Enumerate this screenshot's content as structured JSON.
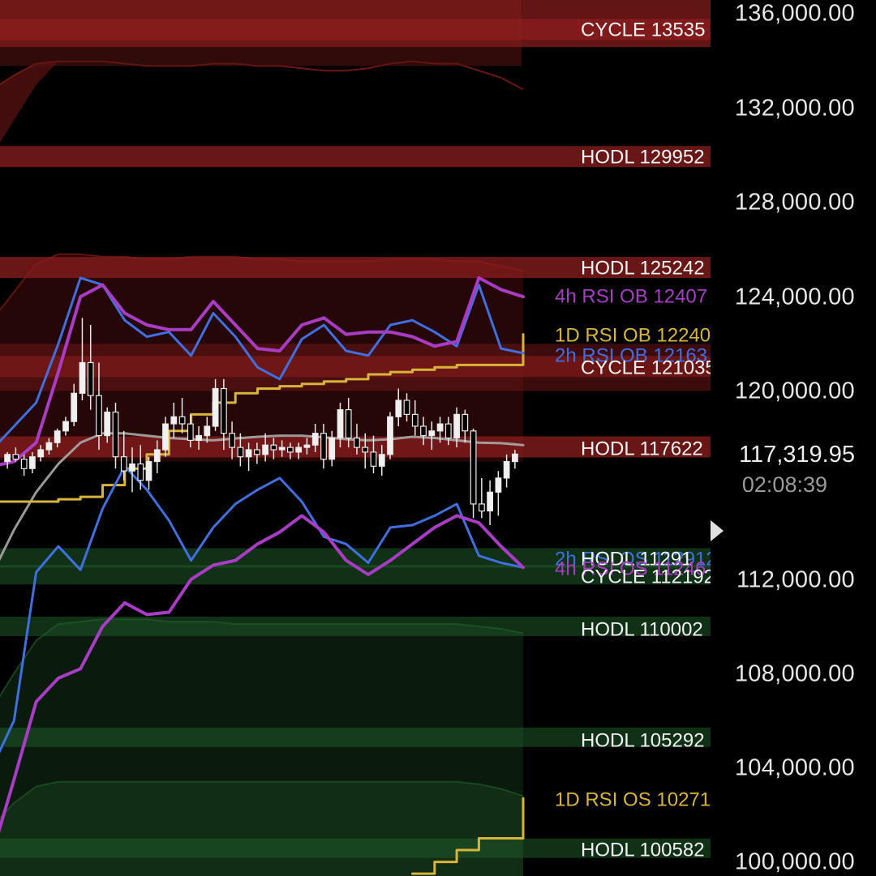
{
  "price_axis": {
    "ticks": [
      "136,000.00",
      "132,000.00",
      "128,000.00",
      "124,000.00",
      "120,000.00",
      "112,000.00",
      "108,000.00",
      "104,000.00",
      "100,000.00"
    ],
    "current_price": "117,319.95",
    "countdown": "02:08:39"
  },
  "colors": {
    "background": "#000000",
    "resistance_zone": "#8b1e1e",
    "support_zone": "#1f5a2a",
    "rsi_2h": "#3f6fe0",
    "rsi_4h": "#a83cc4",
    "rsi_1d": "#d9b43a",
    "ma": "#a8a8a8",
    "candle": "#e8e8e8",
    "level_text": "#f2f2f2"
  },
  "chart_data": {
    "type": "candlestick",
    "ylim": [
      99400,
      136600
    ],
    "y_ticks": [
      136000,
      132000,
      128000,
      124000,
      120000,
      112000,
      108000,
      104000,
      100000
    ],
    "current_price": 117319.95,
    "grid": false,
    "levels": [
      {
        "label": "CYCLE 13535",
        "price": 135350,
        "color": "#f2f2f2",
        "zone": "red"
      },
      {
        "label": "HODL 129952",
        "price": 129952,
        "color": "#f2f2f2",
        "zone": "red"
      },
      {
        "label": "HODL 125242",
        "price": 125242,
        "color": "#f2f2f2",
        "zone": "red"
      },
      {
        "label": "4h RSI OB 12407",
        "price": 124070,
        "color": "#a83cc4",
        "zone": null
      },
      {
        "label": "1D RSI OB 12240",
        "price": 122400,
        "color": "#d9b43a",
        "zone": null
      },
      {
        "label": "2h RSI OB 12163",
        "price": 121630,
        "color": "#3f6fe0",
        "zone": null
      },
      {
        "label": "CYCLE 121035",
        "price": 121035,
        "color": "#f2f2f2",
        "zone": "red"
      },
      {
        "label": "HODL 117622",
        "price": 117622,
        "color": "#f2f2f2",
        "zone": "red"
      },
      {
        "label": "2h RSI OS 112912",
        "price": 112912,
        "color": "#3f6fe0",
        "zone": null
      },
      {
        "label": "HODL 11291",
        "price": 112910,
        "color": "#f2f2f2",
        "zone": "green"
      },
      {
        "label": "4h RSI OS 11246",
        "price": 112460,
        "color": "#a83cc4",
        "zone": null
      },
      {
        "label": "CYCLE 112192",
        "price": 112192,
        "color": "#f2f2f2",
        "zone": "green"
      },
      {
        "label": "HODL 110002",
        "price": 110002,
        "color": "#f2f2f2",
        "zone": "green"
      },
      {
        "label": "HODL 105292",
        "price": 105292,
        "color": "#f2f2f2",
        "zone": "green"
      },
      {
        "label": "1D RSI OS 10271",
        "price": 102710,
        "color": "#d9b43a",
        "zone": null
      },
      {
        "label": "HODL 100582",
        "price": 100582,
        "color": "#f2f2f2",
        "zone": "green"
      }
    ],
    "series": [
      {
        "key": "ma",
        "color": "#a8a8a8",
        "width": 3,
        "opacity": 0.9,
        "values": [
          112200,
          114100,
          115700,
          116900,
          117800,
          118200,
          118200,
          118100,
          118000,
          117950,
          117900,
          117980,
          118050,
          118100,
          118100,
          118030,
          117950,
          117900,
          117950,
          118050,
          118000,
          117900,
          117800,
          117780,
          117700
        ]
      },
      {
        "key": "rsi_1d",
        "color": "#d9b43a",
        "width": 3,
        "opacity": 1,
        "step": true,
        "values": [
          115300,
          115300,
          115300,
          115400,
          115500,
          116000,
          116700,
          117300,
          118300,
          119000,
          119500,
          119900,
          120100,
          120200,
          120300,
          120400,
          120500,
          120700,
          120800,
          120900,
          121000,
          121100,
          121100,
          121100,
          122400
        ]
      },
      {
        "key": "rsi_2h",
        "color": "#3f6fe0",
        "width": 3,
        "opacity": 1,
        "values": [
          117500,
          118500,
          119500,
          122000,
          124800,
          124500,
          123000,
          122300,
          122500,
          121500,
          123300,
          122300,
          121000,
          120500,
          122200,
          122800,
          121700,
          121500,
          122800,
          123000,
          122500,
          121900,
          124500,
          121800,
          121600
        ]
      },
      {
        "key": "rsi_4h",
        "color": "#a83cc4",
        "width": 4,
        "opacity": 1,
        "values": [
          116800,
          117000,
          117800,
          120800,
          124000,
          124500,
          123300,
          122800,
          122600,
          122600,
          123800,
          122800,
          121800,
          121700,
          122800,
          123100,
          122400,
          122500,
          122500,
          122300,
          121900,
          122100,
          124800,
          124300,
          124000
        ]
      },
      {
        "key": "rsi_2h_os",
        "color": "#3f6fe0",
        "width": 3,
        "opacity": 1,
        "values": [
          104000,
          106000,
          112300,
          113400,
          112400,
          115000,
          116800,
          115800,
          114500,
          112800,
          114200,
          115200,
          115800,
          116300,
          115300,
          113800,
          113500,
          112700,
          114200,
          114300,
          114700,
          115200,
          113000,
          112700,
          112500
        ]
      },
      {
        "key": "rsi_4h_os",
        "color": "#a83cc4",
        "width": 4,
        "opacity": 1,
        "values": [
          100300,
          103500,
          106800,
          107800,
          108200,
          110000,
          111000,
          110500,
          110600,
          112000,
          112600,
          112800,
          113500,
          114000,
          114700,
          114000,
          112800,
          112200,
          112800,
          113500,
          114200,
          114700,
          114400,
          113400,
          112500
        ]
      },
      {
        "key": "rsi_1d_os",
        "color": "#d9b43a",
        "width": 3,
        "opacity": 1,
        "step": true,
        "start": 19,
        "values": [
          null,
          null,
          null,
          null,
          null,
          null,
          null,
          null,
          null,
          null,
          null,
          null,
          null,
          null,
          null,
          null,
          null,
          null,
          null,
          99500,
          100000,
          100500,
          101000,
          101000,
          102700
        ]
      }
    ],
    "bands": [
      {
        "upper": [
          132800,
          133400,
          133900,
          134000,
          134000,
          134000,
          133900,
          133800,
          133800,
          133800,
          133900,
          133900,
          133800,
          133800,
          133700,
          133600,
          133600,
          133700,
          133900,
          134000,
          133900,
          133900,
          133600,
          133300,
          132800
        ],
        "lower": [
          130000,
          131500,
          133000,
          134000,
          134000,
          134000,
          133900,
          133800,
          133800,
          133800,
          133900,
          133900,
          133800,
          133800,
          133700,
          133600,
          133600,
          133700,
          133900,
          134000,
          133900,
          133900,
          133600,
          133300,
          132800
        ],
        "fill": "#7a1818",
        "opacity": 0.55
      },
      {
        "upper": [
          123000,
          124200,
          125400,
          125800,
          125800,
          125700,
          125700,
          125600,
          125600,
          125700,
          125700,
          125700,
          125600,
          125600,
          125500,
          125500,
          125500,
          125500,
          125600,
          125600,
          125600,
          125500,
          125500,
          125300,
          125100
        ],
        "fill": "#6a1515",
        "opacity": 0.35
      },
      {
        "upper": [
          106500,
          108000,
          109400,
          110100,
          110200,
          110300,
          110300,
          110300,
          110200,
          110200,
          110200,
          110100,
          110100,
          110100,
          110100,
          110100,
          110100,
          110100,
          110100,
          110100,
          110100,
          110100,
          110000,
          109900,
          109700
        ],
        "fill": "#1c4a22",
        "opacity": 0.35
      },
      {
        "upper": [
          101500,
          102500,
          103200,
          103400,
          103400,
          103400,
          103400,
          103400,
          103400,
          103400,
          103400,
          103400,
          103400,
          103400,
          103400,
          103400,
          103400,
          103400,
          103400,
          103400,
          103400,
          103400,
          103300,
          103100,
          102800
        ],
        "fill": "#1c4a22",
        "opacity": 0.4
      }
    ],
    "candles": [
      [
        117000,
        117400,
        116700,
        117300
      ],
      [
        117300,
        117600,
        117000,
        117100
      ],
      [
        117100,
        117300,
        116400,
        116700
      ],
      [
        116700,
        117400,
        116500,
        117200
      ],
      [
        117200,
        117700,
        117000,
        117500
      ],
      [
        117500,
        118000,
        117300,
        117800
      ],
      [
        117800,
        118400,
        117600,
        118300
      ],
      [
        118300,
        118900,
        118100,
        118700
      ],
      [
        118700,
        120300,
        118500,
        119900
      ],
      [
        119900,
        123100,
        119600,
        121200
      ],
      [
        121200,
        122800,
        119200,
        119800
      ],
      [
        119800,
        121200,
        117500,
        118100
      ],
      [
        118100,
        119300,
        117800,
        119100
      ],
      [
        119100,
        119500,
        116700,
        117200
      ],
      [
        117200,
        118300,
        116200,
        116600
      ],
      [
        116600,
        117600,
        115700,
        116900
      ],
      [
        116900,
        117700,
        115800,
        116200
      ],
      [
        116200,
        117200,
        115800,
        117000
      ],
      [
        117000,
        117900,
        116500,
        117500
      ],
      [
        117500,
        118900,
        117200,
        118600
      ],
      [
        118600,
        119500,
        118000,
        118900
      ],
      [
        118900,
        119700,
        118200,
        118600
      ],
      [
        118600,
        119000,
        117600,
        117900
      ],
      [
        117900,
        118500,
        117500,
        118100
      ],
      [
        118100,
        118900,
        117800,
        118500
      ],
      [
        118500,
        120500,
        118300,
        120100
      ],
      [
        120100,
        120500,
        117500,
        118200
      ],
      [
        118200,
        118700,
        117100,
        117600
      ],
      [
        117600,
        118200,
        116800,
        117200
      ],
      [
        117200,
        117800,
        116600,
        117500
      ],
      [
        117500,
        117800,
        116900,
        117300
      ],
      [
        117300,
        118200,
        117000,
        117700
      ],
      [
        117700,
        118000,
        117100,
        117500
      ],
      [
        117500,
        117900,
        117200,
        117600
      ],
      [
        117600,
        117800,
        117100,
        117400
      ],
      [
        117400,
        117800,
        117100,
        117600
      ],
      [
        117600,
        118000,
        117300,
        117700
      ],
      [
        117700,
        118600,
        117400,
        118200
      ],
      [
        118200,
        118600,
        116700,
        117100
      ],
      [
        117100,
        118300,
        116800,
        118000
      ],
      [
        118000,
        119500,
        117600,
        119200
      ],
      [
        119200,
        119700,
        117600,
        118000
      ],
      [
        118000,
        118600,
        117300,
        117600
      ],
      [
        117600,
        118200,
        116700,
        117400
      ],
      [
        117400,
        118100,
        116500,
        116800
      ],
      [
        116800,
        117700,
        116400,
        117300
      ],
      [
        117300,
        119100,
        117100,
        118900
      ],
      [
        118900,
        120100,
        118500,
        119600
      ],
      [
        119600,
        119900,
        118700,
        119000
      ],
      [
        119000,
        119600,
        118100,
        118500
      ],
      [
        118500,
        118900,
        117700,
        118100
      ],
      [
        118100,
        118700,
        117500,
        118300
      ],
      [
        118300,
        118900,
        117800,
        118600
      ],
      [
        118600,
        118900,
        117700,
        118000
      ],
      [
        118000,
        119300,
        117600,
        119000
      ],
      [
        119000,
        119200,
        117800,
        118300
      ],
      [
        118300,
        118400,
        114600,
        115200
      ],
      [
        115200,
        116300,
        114600,
        114900
      ],
      [
        114900,
        116200,
        114300,
        115700
      ],
      [
        115700,
        116600,
        114700,
        116300
      ],
      [
        116300,
        117300,
        115900,
        117000
      ],
      [
        117000,
        117500,
        116700,
        117320
      ]
    ]
  }
}
